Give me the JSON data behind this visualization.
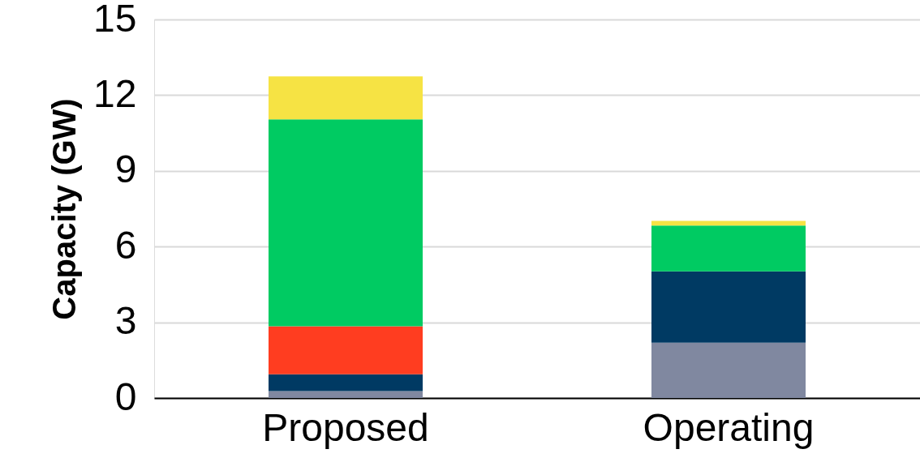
{
  "chart_data": {
    "type": "bar",
    "stacked": true,
    "ylabel": "Capacity (GW)",
    "categories": [
      "Proposed",
      "Operating"
    ],
    "series": [
      {
        "color": "#8088a0",
        "values": [
          0.27,
          2.19
        ]
      },
      {
        "color": "#003a63",
        "values": [
          0.67,
          2.83
        ]
      },
      {
        "color": "#ff3d20",
        "values": [
          1.9,
          0
        ]
      },
      {
        "color": "#00cb62",
        "values": [
          8.2,
          1.81
        ]
      },
      {
        "color": "#f6e344",
        "values": [
          1.7,
          0.19
        ]
      }
    ],
    "ylim": [
      0,
      15
    ],
    "yticks": [
      0,
      3,
      6,
      9,
      12,
      15
    ],
    "grid": "y",
    "legend": false
  }
}
